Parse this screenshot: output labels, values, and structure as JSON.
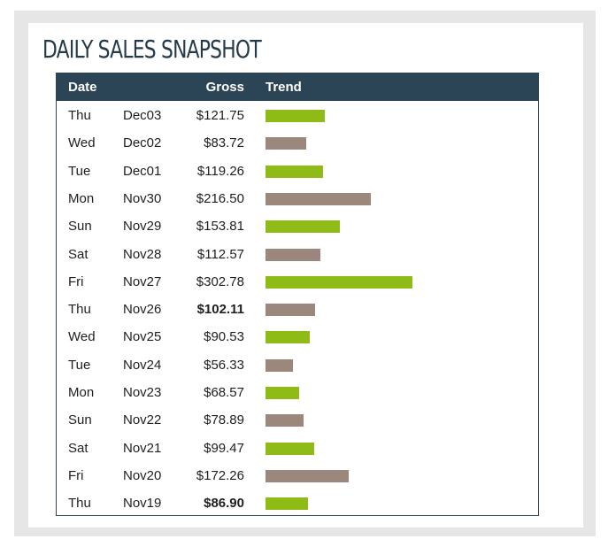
{
  "colors": {
    "header_bg": "#2c4556",
    "title": "#233a4b",
    "up": "#8fbb17",
    "down": "#9c877c"
  },
  "chart_data": {
    "type": "table",
    "title": "DAILY SALES SNAPSHOT",
    "columns": [
      "Date",
      "Gross",
      "Trend"
    ],
    "trend_scale_max": 302.78,
    "rows": [
      {
        "day": "Thu",
        "date": "Dec03",
        "gross": "$121.75",
        "value": 121.75,
        "trend": "up",
        "bold": false
      },
      {
        "day": "Wed",
        "date": "Dec02",
        "gross": "$83.72",
        "value": 83.72,
        "trend": "down",
        "bold": false
      },
      {
        "day": "Tue",
        "date": "Dec01",
        "gross": "$119.26",
        "value": 119.26,
        "trend": "up",
        "bold": false
      },
      {
        "day": "Mon",
        "date": "Nov30",
        "gross": "$216.50",
        "value": 216.5,
        "trend": "down",
        "bold": false
      },
      {
        "day": "Sun",
        "date": "Nov29",
        "gross": "$153.81",
        "value": 153.81,
        "trend": "up",
        "bold": false
      },
      {
        "day": "Sat",
        "date": "Nov28",
        "gross": "$112.57",
        "value": 112.57,
        "trend": "down",
        "bold": false
      },
      {
        "day": "Fri",
        "date": "Nov27",
        "gross": "$302.78",
        "value": 302.78,
        "trend": "up",
        "bold": false
      },
      {
        "day": "Thu",
        "date": "Nov26",
        "gross": "$102.11",
        "value": 102.11,
        "trend": "down",
        "bold": true
      },
      {
        "day": "Wed",
        "date": "Nov25",
        "gross": "$90.53",
        "value": 90.53,
        "trend": "up",
        "bold": false
      },
      {
        "day": "Tue",
        "date": "Nov24",
        "gross": "$56.33",
        "value": 56.33,
        "trend": "down",
        "bold": false
      },
      {
        "day": "Mon",
        "date": "Nov23",
        "gross": "$68.57",
        "value": 68.57,
        "trend": "up",
        "bold": false
      },
      {
        "day": "Sun",
        "date": "Nov22",
        "gross": "$78.89",
        "value": 78.89,
        "trend": "down",
        "bold": false
      },
      {
        "day": "Sat",
        "date": "Nov21",
        "gross": "$99.47",
        "value": 99.47,
        "trend": "up",
        "bold": false
      },
      {
        "day": "Fri",
        "date": "Nov20",
        "gross": "$172.26",
        "value": 172.26,
        "trend": "down",
        "bold": false
      },
      {
        "day": "Thu",
        "date": "Nov19",
        "gross": "$86.90",
        "value": 86.9,
        "trend": "up",
        "bold": true
      }
    ]
  }
}
